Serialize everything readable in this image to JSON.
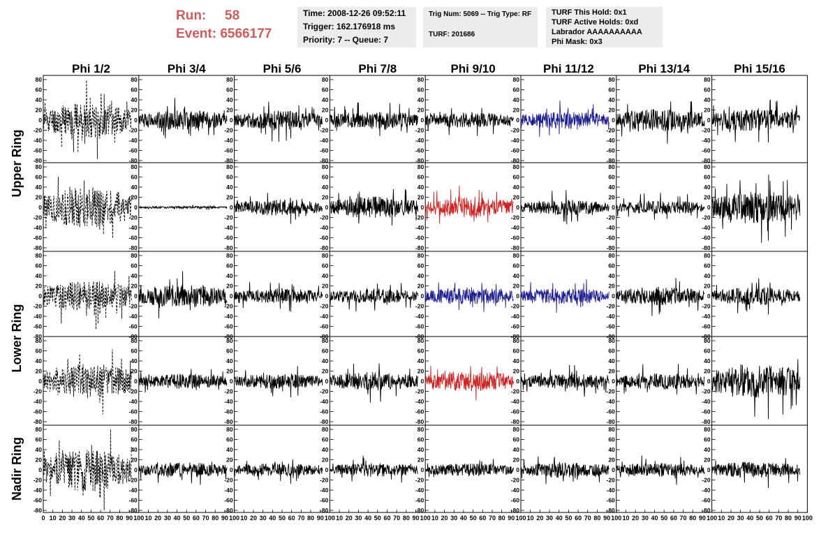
{
  "header": {
    "run_label": "Run:",
    "run_value": "58",
    "event_label": "Event:",
    "event_value": "6566177",
    "time": "Time: 2008-12-26 09:52:11",
    "trigger": "Trigger: 162.176918 ms",
    "priority": "Priority: 7 -- Queue: 7",
    "trig_num": "Trig Num: 5069 -- Trig Type: RF",
    "turf": "TURF: 201686",
    "turf_hold": "TURF This Hold: 0x1",
    "turf_active": "TURF Active Holds: 0xd",
    "labrador": "Labrador AAAAAAAAAA",
    "phi_mask": "Phi Mask: 0x3"
  },
  "chart_data": {
    "type": "line",
    "title": "",
    "columns": [
      "Phi 1/2",
      "Phi 3/4",
      "Phi 5/6",
      "Phi 7/8",
      "Phi 9/10",
      "Phi 11/12",
      "Phi 13/14",
      "Phi 15/16"
    ],
    "ring_labels": [
      {
        "text": "Upper Ring",
        "rows": [
          0,
          1
        ]
      },
      {
        "text": "Lower Ring",
        "rows": [
          2,
          3
        ]
      },
      {
        "text": "Nadir Ring",
        "rows": [
          4
        ]
      }
    ],
    "ylim": [
      -80,
      80
    ],
    "y_ticks": [
      -80,
      -60,
      -40,
      -20,
      0,
      20,
      40,
      60,
      80
    ],
    "xlim": [
      0,
      100
    ],
    "x_ticks": [
      0,
      10,
      20,
      30,
      40,
      50,
      60,
      70,
      80,
      90,
      100
    ],
    "samples": 260,
    "colors": {
      "normal": "#000000",
      "blue": "#1f1f8f",
      "red": "#cc2222"
    },
    "panels": [
      [
        {
          "amp": 28,
          "color": "normal",
          "dashed": true,
          "seed": 11
        },
        {
          "amp": 16,
          "color": "normal",
          "seed": 12
        },
        {
          "amp": 15,
          "color": "normal",
          "seed": 13
        },
        {
          "amp": 14,
          "color": "normal",
          "seed": 14
        },
        {
          "amp": 12,
          "color": "normal",
          "seed": 15
        },
        {
          "amp": 14,
          "color": "blue",
          "seed": 16
        },
        {
          "amp": 18,
          "color": "normal",
          "seed": 17
        },
        {
          "amp": 18,
          "color": "normal",
          "seed": 18
        }
      ],
      [
        {
          "amp": 32,
          "color": "normal",
          "dashed": true,
          "seed": 21
        },
        {
          "amp": 2,
          "color": "normal",
          "seed": 22
        },
        {
          "amp": 13,
          "color": "normal",
          "seed": 23
        },
        {
          "amp": 17,
          "color": "normal",
          "seed": 24
        },
        {
          "amp": 16,
          "color": "red",
          "seed": 25
        },
        {
          "amp": 12,
          "color": "normal",
          "seed": 26
        },
        {
          "amp": 11,
          "color": "normal",
          "seed": 27
        },
        {
          "amp": 26,
          "color": "normal",
          "seed": 28
        }
      ],
      [
        {
          "amp": 24,
          "color": "normal",
          "dashed": true,
          "seed": 31
        },
        {
          "amp": 18,
          "color": "normal",
          "seed": 32
        },
        {
          "amp": 12,
          "color": "normal",
          "seed": 33
        },
        {
          "amp": 12,
          "color": "normal",
          "seed": 34
        },
        {
          "amp": 14,
          "color": "blue",
          "seed": 35
        },
        {
          "amp": 13,
          "color": "blue",
          "seed": 36
        },
        {
          "amp": 15,
          "color": "normal",
          "seed": 37
        },
        {
          "amp": 14,
          "color": "normal",
          "seed": 38
        }
      ],
      [
        {
          "amp": 28,
          "color": "normal",
          "dashed": true,
          "seed": 41
        },
        {
          "amp": 12,
          "color": "normal",
          "seed": 42
        },
        {
          "amp": 12,
          "color": "normal",
          "seed": 43
        },
        {
          "amp": 15,
          "color": "normal",
          "seed": 44
        },
        {
          "amp": 16,
          "color": "red",
          "seed": 45
        },
        {
          "amp": 12,
          "color": "normal",
          "seed": 46
        },
        {
          "amp": 13,
          "color": "normal",
          "seed": 47
        },
        {
          "amp": 28,
          "color": "normal",
          "seed": 48
        }
      ],
      [
        {
          "amp": 34,
          "color": "normal",
          "dashed": true,
          "seed": 51
        },
        {
          "amp": 12,
          "color": "normal",
          "seed": 52
        },
        {
          "amp": 10,
          "color": "normal",
          "seed": 53
        },
        {
          "amp": 11,
          "color": "normal",
          "seed": 54
        },
        {
          "amp": 10,
          "color": "normal",
          "seed": 55
        },
        {
          "amp": 12,
          "color": "normal",
          "seed": 56
        },
        {
          "amp": 11,
          "color": "normal",
          "seed": 57
        },
        {
          "amp": 13,
          "color": "normal",
          "seed": 58
        }
      ]
    ]
  }
}
